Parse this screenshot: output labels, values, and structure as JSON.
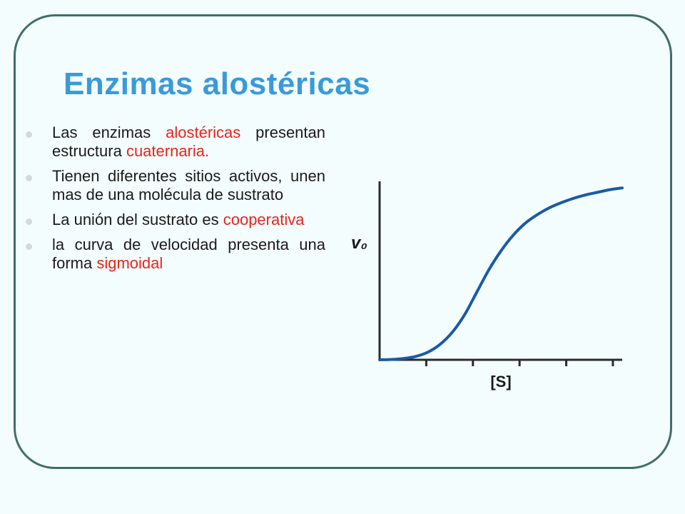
{
  "slide": {
    "title": "Enzimas alostéricas",
    "bullets": [
      {
        "parts": [
          "Las enzimas ",
          "alostéricas",
          " presentan estructura ",
          "cuaternaria."
        ]
      },
      {
        "parts": [
          "Tienen diferentes sitios activos, unen mas de una molécula de sustrato"
        ]
      },
      {
        "parts": [
          "La unión del sustrato es ",
          "cooperativa"
        ]
      },
      {
        "parts": [
          "la curva de velocidad presenta una forma ",
          "sigmoidal"
        ]
      }
    ],
    "colors": {
      "title": "#3a9ad9",
      "highlight": "#e8241c",
      "frame": "#3f6e6a",
      "curve": "#1a5aa4"
    }
  },
  "chart_data": {
    "type": "line",
    "ylabel": "v₀",
    "xlabel": "[S]",
    "xlim": [
      0,
      10
    ],
    "ylim": [
      0,
      10
    ],
    "x_ticks": 5,
    "grid": false,
    "series": [
      {
        "x": [
          0,
          0.5,
          1,
          1.5,
          2,
          2.5,
          3,
          3.5,
          4,
          4.5,
          5,
          5.5,
          6,
          6.5,
          7,
          7.5,
          8,
          8.5,
          9,
          9.5,
          10
        ],
        "values": [
          0,
          0.02,
          0.08,
          0.2,
          0.45,
          0.9,
          1.6,
          2.6,
          3.9,
          5.2,
          6.3,
          7.2,
          7.9,
          8.4,
          8.8,
          9.1,
          9.35,
          9.55,
          9.7,
          9.85,
          9.95
        ]
      }
    ]
  }
}
